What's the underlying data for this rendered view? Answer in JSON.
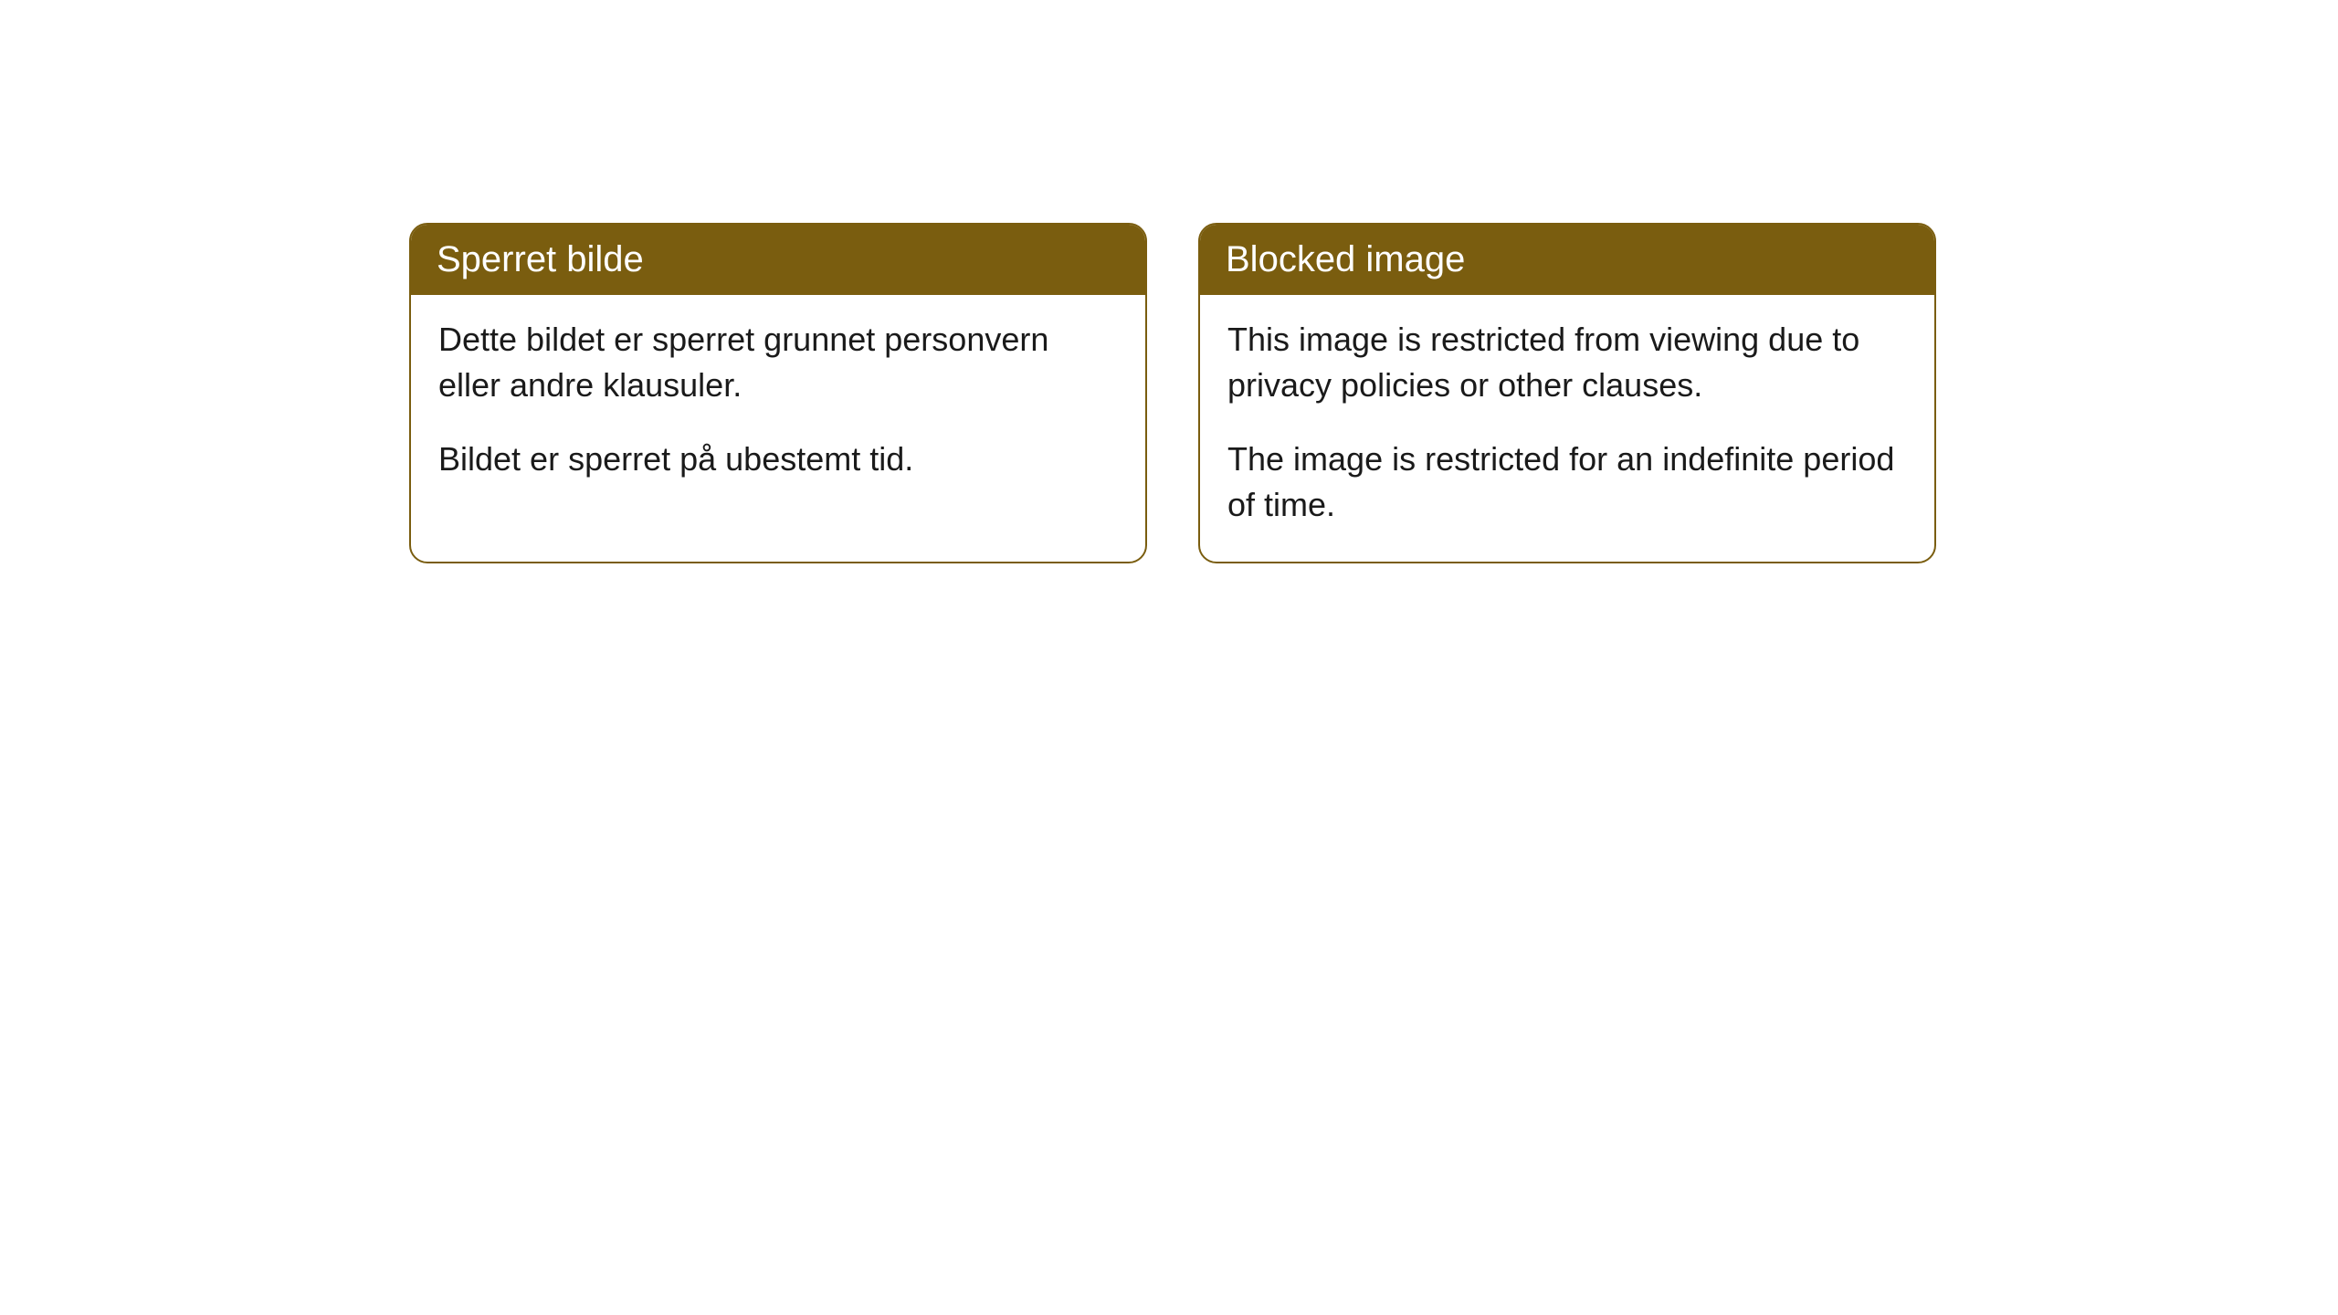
{
  "cards": [
    {
      "title": "Sperret bilde",
      "line1": "Dette bildet er sperret grunnet personvern eller andre klausuler.",
      "line2": "Bildet er sperret på ubestemt tid."
    },
    {
      "title": "Blocked image",
      "line1": "This image is restricted from viewing due to privacy policies or other clauses.",
      "line2": "The image is restricted for an indefinite period of time."
    }
  ],
  "style": {
    "header_bg_color": "#7a5d0f",
    "header_text_color": "#ffffff",
    "border_color": "#7a5d0f",
    "body_bg_color": "#ffffff",
    "body_text_color": "#1a1a1a",
    "border_radius": 20,
    "title_fontsize": 40,
    "body_fontsize": 36
  }
}
